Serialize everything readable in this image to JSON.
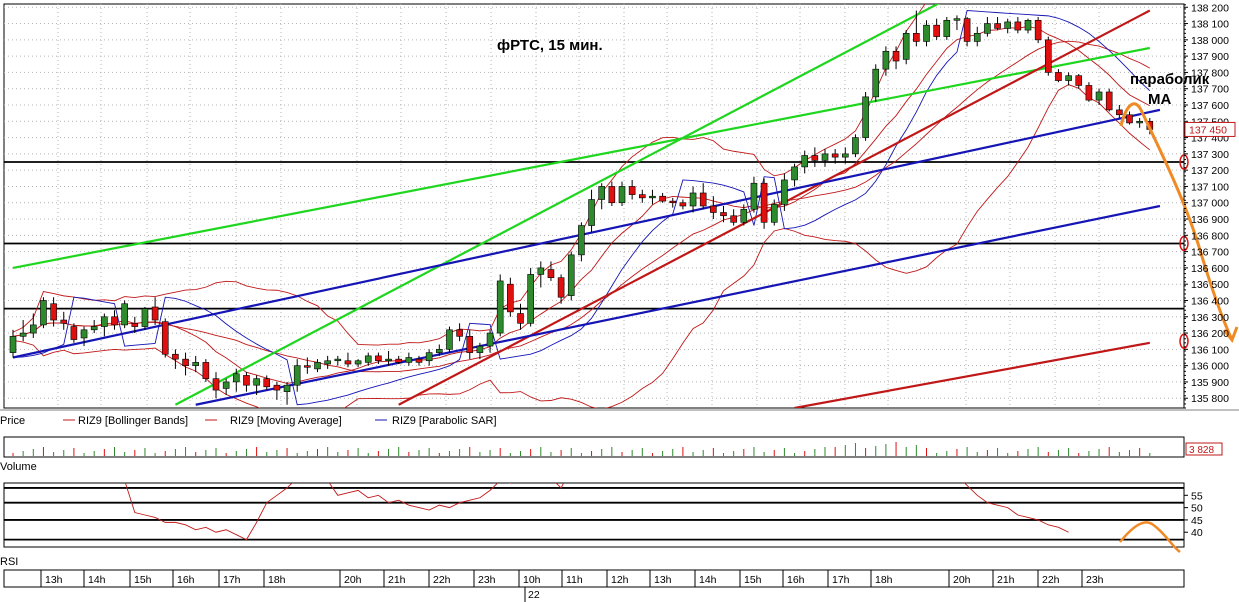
{
  "chart_data": {
    "type": "candlestick",
    "title": "фРТС,  15 мин.",
    "annotation": {
      "line1": "параболик",
      "line2": "МА"
    },
    "price_axis": {
      "min": 135740,
      "max": 138220,
      "ticks": [
        135800,
        135900,
        136000,
        136100,
        136200,
        136300,
        136400,
        136500,
        136600,
        136700,
        136800,
        136900,
        137000,
        137100,
        137200,
        137300,
        137400,
        137500,
        137600,
        137700,
        137800,
        137900,
        138000,
        138100,
        138200
      ],
      "tick_labels": [
        "135 800",
        "135 900",
        "136 000",
        "136 100",
        "136 200",
        "136 300",
        "136 400",
        "136 500",
        "136 600",
        "136 700",
        "136 800",
        "136 900",
        "137 000",
        "137 100",
        "137 200",
        "137 300",
        "137 400",
        "137 500",
        "137 600",
        "137 700",
        "137 800",
        "137 900",
        "138 000",
        "138 100",
        "138 200"
      ],
      "current_price_label": "137 450"
    },
    "horizontal_levels": [
      137250,
      136750,
      136350
    ],
    "time_axis": {
      "labels": [
        "13h",
        "14h",
        "15h",
        "16h",
        "17h",
        "18h",
        "20h",
        "21h",
        "22h",
        "23h",
        "10h",
        "11h",
        "12h",
        "13h",
        "14h",
        "15h",
        "16h",
        "17h",
        "18h",
        "20h",
        "21h",
        "22h",
        "23h"
      ],
      "day_label": "22"
    },
    "legend": {
      "price": "Price",
      "bollinger": "RIZ9 [Bollinger Bands]",
      "ma": "RIZ9 [Moving Average]",
      "sar": "RIZ9 [Parabolic SAR]"
    },
    "volume": {
      "label": "Volume",
      "last_value": "3 828"
    },
    "rsi": {
      "label": "RSI",
      "ticks": [
        40,
        45,
        50,
        55
      ],
      "tick_labels": [
        "40",
        "45",
        "50",
        "55"
      ],
      "levels": [
        37,
        45,
        52,
        58
      ],
      "min": 34,
      "max": 60,
      "values": [
        72,
        70,
        75,
        73,
        71,
        68,
        74,
        66,
        70,
        72,
        65,
        61,
        48,
        47,
        46,
        44,
        44,
        43,
        41,
        42,
        40,
        41,
        39,
        37,
        44,
        52,
        55,
        58,
        62,
        64,
        66,
        61,
        55,
        56,
        57,
        54,
        55,
        52,
        53,
        51,
        50,
        49,
        51,
        50,
        52,
        53,
        54,
        57,
        61,
        60,
        62,
        64,
        66,
        62,
        58,
        66,
        69,
        72,
        75,
        76,
        78,
        73,
        75,
        72,
        70,
        71,
        68,
        69,
        67,
        72,
        73,
        63,
        68,
        66,
        67,
        65,
        66,
        74,
        78,
        80,
        82,
        81,
        76,
        73,
        76,
        75,
        71,
        75,
        73,
        72,
        70,
        65,
        62,
        63,
        59,
        55,
        52,
        51,
        50,
        47,
        46,
        45,
        43,
        42,
        40
      ]
    },
    "candles": [
      {
        "o": 136080,
        "h": 136220,
        "l": 136050,
        "c": 136180
      },
      {
        "o": 136180,
        "h": 136280,
        "l": 136150,
        "c": 136200
      },
      {
        "o": 136200,
        "h": 136320,
        "l": 136170,
        "c": 136250
      },
      {
        "o": 136250,
        "h": 136420,
        "l": 136230,
        "c": 136400
      },
      {
        "o": 136380,
        "h": 136420,
        "l": 136240,
        "c": 136280
      },
      {
        "o": 136280,
        "h": 136330,
        "l": 136220,
        "c": 136260
      },
      {
        "o": 136240,
        "h": 136260,
        "l": 136140,
        "c": 136160
      },
      {
        "o": 136170,
        "h": 136240,
        "l": 136120,
        "c": 136220
      },
      {
        "o": 136220,
        "h": 136280,
        "l": 136200,
        "c": 136240
      },
      {
        "o": 136240,
        "h": 136320,
        "l": 136180,
        "c": 136300
      },
      {
        "o": 136300,
        "h": 136340,
        "l": 136220,
        "c": 136250
      },
      {
        "o": 136250,
        "h": 136400,
        "l": 136230,
        "c": 136380
      },
      {
        "o": 136260,
        "h": 136300,
        "l": 136200,
        "c": 136240
      },
      {
        "o": 136240,
        "h": 136360,
        "l": 136220,
        "c": 136350
      },
      {
        "o": 136360,
        "h": 136420,
        "l": 136250,
        "c": 136280
      },
      {
        "o": 136270,
        "h": 136290,
        "l": 136050,
        "c": 136070
      },
      {
        "o": 136070,
        "h": 136100,
        "l": 135980,
        "c": 136040
      },
      {
        "o": 136040,
        "h": 136080,
        "l": 135940,
        "c": 136000
      },
      {
        "o": 136000,
        "h": 136060,
        "l": 135960,
        "c": 136020
      },
      {
        "o": 136020,
        "h": 136040,
        "l": 135900,
        "c": 135920
      },
      {
        "o": 135920,
        "h": 135960,
        "l": 135800,
        "c": 135850
      },
      {
        "o": 135860,
        "h": 135920,
        "l": 135820,
        "c": 135900
      },
      {
        "o": 135900,
        "h": 135980,
        "l": 135840,
        "c": 135950
      },
      {
        "o": 135940,
        "h": 135960,
        "l": 135840,
        "c": 135880
      },
      {
        "o": 135880,
        "h": 135940,
        "l": 135820,
        "c": 135920
      },
      {
        "o": 135920,
        "h": 135940,
        "l": 135850,
        "c": 135870
      },
      {
        "o": 135880,
        "h": 135900,
        "l": 135790,
        "c": 135850
      },
      {
        "o": 135840,
        "h": 135900,
        "l": 135760,
        "c": 135880
      },
      {
        "o": 135880,
        "h": 136040,
        "l": 135840,
        "c": 136000
      },
      {
        "o": 136000,
        "h": 136050,
        "l": 135950,
        "c": 135990
      },
      {
        "o": 135980,
        "h": 136040,
        "l": 135960,
        "c": 136020
      },
      {
        "o": 136010,
        "h": 136060,
        "l": 135980,
        "c": 136030
      },
      {
        "o": 136030,
        "h": 136060,
        "l": 136000,
        "c": 136040
      },
      {
        "o": 136030,
        "h": 136080,
        "l": 135990,
        "c": 136010
      },
      {
        "o": 136010,
        "h": 136040,
        "l": 135990,
        "c": 136030
      },
      {
        "o": 136020,
        "h": 136080,
        "l": 136000,
        "c": 136060
      },
      {
        "o": 136060,
        "h": 136080,
        "l": 136010,
        "c": 136030
      },
      {
        "o": 136030,
        "h": 136090,
        "l": 136000,
        "c": 136040
      },
      {
        "o": 136040,
        "h": 136060,
        "l": 136010,
        "c": 136020
      },
      {
        "o": 136020,
        "h": 136080,
        "l": 136000,
        "c": 136050
      },
      {
        "o": 136040,
        "h": 136060,
        "l": 136000,
        "c": 136020
      },
      {
        "o": 136030,
        "h": 136100,
        "l": 136000,
        "c": 136080
      },
      {
        "o": 136080,
        "h": 136130,
        "l": 136060,
        "c": 136100
      },
      {
        "o": 136100,
        "h": 136240,
        "l": 136080,
        "c": 136220
      },
      {
        "o": 136220,
        "h": 136260,
        "l": 136150,
        "c": 136180
      },
      {
        "o": 136180,
        "h": 136220,
        "l": 136040,
        "c": 136080
      },
      {
        "o": 136080,
        "h": 136140,
        "l": 136040,
        "c": 136120
      },
      {
        "o": 136120,
        "h": 136220,
        "l": 136080,
        "c": 136200
      },
      {
        "o": 136200,
        "h": 136560,
        "l": 136180,
        "c": 136520
      },
      {
        "o": 136500,
        "h": 136540,
        "l": 136300,
        "c": 136330
      },
      {
        "o": 136320,
        "h": 136380,
        "l": 136220,
        "c": 136260
      },
      {
        "o": 136260,
        "h": 136600,
        "l": 136240,
        "c": 136560
      },
      {
        "o": 136560,
        "h": 136640,
        "l": 136480,
        "c": 136600
      },
      {
        "o": 136590,
        "h": 136640,
        "l": 136520,
        "c": 136540
      },
      {
        "o": 136540,
        "h": 136560,
        "l": 136380,
        "c": 136420
      },
      {
        "o": 136430,
        "h": 136700,
        "l": 136400,
        "c": 136680
      },
      {
        "o": 136680,
        "h": 136880,
        "l": 136640,
        "c": 136860
      },
      {
        "o": 136860,
        "h": 137080,
        "l": 136820,
        "c": 137020
      },
      {
        "o": 137020,
        "h": 137120,
        "l": 136960,
        "c": 137100
      },
      {
        "o": 137100,
        "h": 137130,
        "l": 136980,
        "c": 137000
      },
      {
        "o": 137000,
        "h": 137130,
        "l": 136980,
        "c": 137100
      },
      {
        "o": 137100,
        "h": 137140,
        "l": 137020,
        "c": 137050
      },
      {
        "o": 137050,
        "h": 137080,
        "l": 137000,
        "c": 137030
      },
      {
        "o": 137030,
        "h": 137080,
        "l": 136990,
        "c": 137040
      },
      {
        "o": 137040,
        "h": 137060,
        "l": 137000,
        "c": 137010
      },
      {
        "o": 137010,
        "h": 137030,
        "l": 136970,
        "c": 137000
      },
      {
        "o": 137000,
        "h": 137020,
        "l": 136960,
        "c": 136980
      },
      {
        "o": 136980,
        "h": 137100,
        "l": 136940,
        "c": 137060
      },
      {
        "o": 137060,
        "h": 137120,
        "l": 136960,
        "c": 136980
      },
      {
        "o": 136980,
        "h": 137040,
        "l": 136900,
        "c": 136940
      },
      {
        "o": 136940,
        "h": 136980,
        "l": 136880,
        "c": 136920
      },
      {
        "o": 136920,
        "h": 136960,
        "l": 136860,
        "c": 136880
      },
      {
        "o": 136880,
        "h": 136990,
        "l": 136860,
        "c": 136960
      },
      {
        "o": 136960,
        "h": 137160,
        "l": 136940,
        "c": 137120
      },
      {
        "o": 137120,
        "h": 137150,
        "l": 136840,
        "c": 136880
      },
      {
        "o": 136880,
        "h": 137020,
        "l": 136860,
        "c": 136990
      },
      {
        "o": 136990,
        "h": 137180,
        "l": 136950,
        "c": 137140
      },
      {
        "o": 137140,
        "h": 137240,
        "l": 137100,
        "c": 137220
      },
      {
        "o": 137220,
        "h": 137320,
        "l": 137180,
        "c": 137290
      },
      {
        "o": 137290,
        "h": 137340,
        "l": 137220,
        "c": 137260
      },
      {
        "o": 137260,
        "h": 137330,
        "l": 137220,
        "c": 137300
      },
      {
        "o": 137300,
        "h": 137330,
        "l": 137240,
        "c": 137280
      },
      {
        "o": 137280,
        "h": 137340,
        "l": 137240,
        "c": 137300
      },
      {
        "o": 137300,
        "h": 137420,
        "l": 137280,
        "c": 137400
      },
      {
        "o": 137400,
        "h": 137680,
        "l": 137380,
        "c": 137650
      },
      {
        "o": 137650,
        "h": 137850,
        "l": 137620,
        "c": 137820
      },
      {
        "o": 137820,
        "h": 137960,
        "l": 137780,
        "c": 137930
      },
      {
        "o": 137930,
        "h": 137960,
        "l": 137820,
        "c": 137870
      },
      {
        "o": 137880,
        "h": 138060,
        "l": 137850,
        "c": 138040
      },
      {
        "o": 138040,
        "h": 138180,
        "l": 137960,
        "c": 137990
      },
      {
        "o": 137990,
        "h": 138120,
        "l": 137960,
        "c": 138090
      },
      {
        "o": 138090,
        "h": 138130,
        "l": 138000,
        "c": 138020
      },
      {
        "o": 138020,
        "h": 138140,
        "l": 138000,
        "c": 138120
      },
      {
        "o": 138120,
        "h": 138150,
        "l": 138060,
        "c": 138130
      },
      {
        "o": 138130,
        "h": 138140,
        "l": 137960,
        "c": 137990
      },
      {
        "o": 137990,
        "h": 138080,
        "l": 137960,
        "c": 138040
      },
      {
        "o": 138040,
        "h": 138140,
        "l": 138020,
        "c": 138100
      },
      {
        "o": 138100,
        "h": 138140,
        "l": 138060,
        "c": 138070
      },
      {
        "o": 138070,
        "h": 138130,
        "l": 138040,
        "c": 138110
      },
      {
        "o": 138110,
        "h": 138140,
        "l": 138040,
        "c": 138060
      },
      {
        "o": 138060,
        "h": 138130,
        "l": 138040,
        "c": 138120
      },
      {
        "o": 138120,
        "h": 138140,
        "l": 137980,
        "c": 138000
      },
      {
        "o": 138000,
        "h": 138020,
        "l": 137780,
        "c": 137800
      },
      {
        "o": 137800,
        "h": 137820,
        "l": 137740,
        "c": 137750
      },
      {
        "o": 137750,
        "h": 137800,
        "l": 137720,
        "c": 137780
      },
      {
        "o": 137780,
        "h": 137790,
        "l": 137700,
        "c": 137720
      },
      {
        "o": 137720,
        "h": 137740,
        "l": 137620,
        "c": 137630
      },
      {
        "o": 137630,
        "h": 137700,
        "l": 137600,
        "c": 137680
      },
      {
        "o": 137680,
        "h": 137700,
        "l": 137560,
        "c": 137570
      },
      {
        "o": 137570,
        "h": 137600,
        "l": 137520,
        "c": 137540
      },
      {
        "o": 137540,
        "h": 137560,
        "l": 137480,
        "c": 137490
      },
      {
        "o": 137490,
        "h": 137520,
        "l": 137460,
        "c": 137500
      },
      {
        "o": 137500,
        "h": 137520,
        "l": 137420,
        "c": 137450
      }
    ],
    "trendlines": [
      {
        "color": "#1ed61e",
        "p1": [
          0,
          136600
        ],
        "p2": [
          112,
          137950
        ]
      },
      {
        "color": "#1ed61e",
        "p1": [
          16,
          135760
        ],
        "p2": [
          92,
          138250
        ]
      },
      {
        "color": "#c01818",
        "p1": [
          38,
          135760
        ],
        "p2": [
          112,
          138180
        ]
      },
      {
        "color": "#c01818",
        "p1": [
          77,
          135740
        ],
        "p2": [
          112,
          136140
        ]
      },
      {
        "color": "#1515b5",
        "p1": [
          0,
          136050
        ],
        "p2": [
          113,
          137570
        ]
      },
      {
        "color": "#1515b5",
        "p1": [
          18,
          135760
        ],
        "p2": [
          113,
          136980
        ]
      }
    ]
  }
}
